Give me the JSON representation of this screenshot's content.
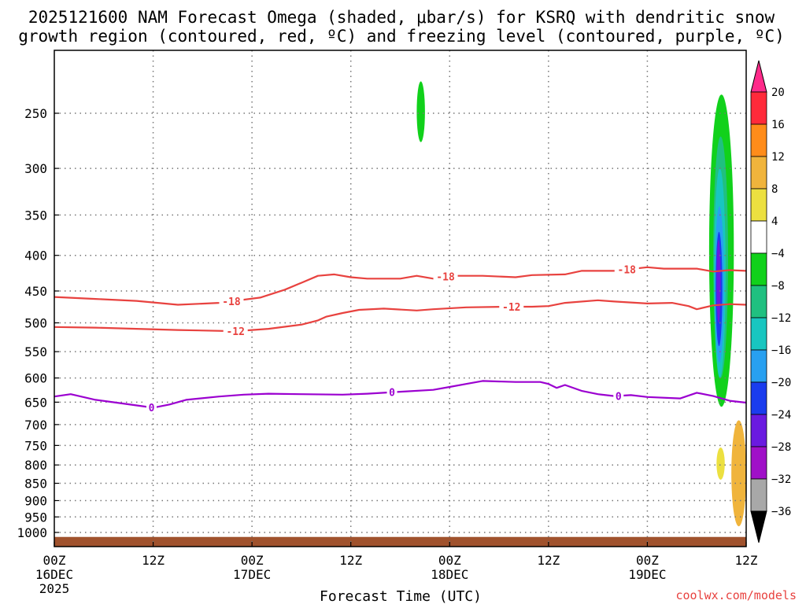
{
  "chart_data": {
    "type": "time-height",
    "title": "2025121600 NAM Forecast Omega (shaded, μbar/s) for KSRQ with dendritic snow",
    "title_line2": "growth region (contoured, red, ºC) and freezing level (contoured, purple, ºC)",
    "xlabel": "Forecast Time (UTC)",
    "credit": "coolwx.com/models",
    "y_axis": {
      "ticks": [
        {
          "p": 250,
          "label": "250"
        },
        {
          "p": 300,
          "label": "300"
        },
        {
          "p": 350,
          "label": "350"
        },
        {
          "p": 400,
          "label": "400"
        },
        {
          "p": 450,
          "label": "450"
        },
        {
          "p": 500,
          "label": "500"
        },
        {
          "p": 550,
          "label": "550"
        },
        {
          "p": 600,
          "label": "600"
        },
        {
          "p": 650,
          "label": "650"
        },
        {
          "p": 700,
          "label": "700"
        },
        {
          "p": 750,
          "label": "750"
        },
        {
          "p": 800,
          "label": "800"
        },
        {
          "p": 850,
          "label": "850"
        },
        {
          "p": 900,
          "label": "900"
        },
        {
          "p": 950,
          "label": "950"
        },
        {
          "p": 1000,
          "label": "1000"
        }
      ]
    },
    "x_axis": {
      "range_hours": [
        0,
        84
      ],
      "ticks": [
        {
          "h": 0,
          "label": "00Z",
          "label2": "16DEC",
          "label3": "2025"
        },
        {
          "h": 12,
          "label": "12Z",
          "label2": "",
          "label3": ""
        },
        {
          "h": 24,
          "label": "00Z",
          "label2": "17DEC",
          "label3": ""
        },
        {
          "h": 36,
          "label": "12Z",
          "label2": "",
          "label3": ""
        },
        {
          "h": 48,
          "label": "00Z",
          "label2": "18DEC",
          "label3": ""
        },
        {
          "h": 60,
          "label": "12Z",
          "label2": "",
          "label3": ""
        },
        {
          "h": 72,
          "label": "00Z",
          "label2": "19DEC",
          "label3": ""
        },
        {
          "h": 84,
          "label": "12Z",
          "label2": "",
          "label3": ""
        }
      ]
    },
    "colorbar": {
      "labels": [
        "20",
        "16",
        "12",
        "8",
        "4",
        "−4",
        "−8",
        "−12",
        "−16",
        "−20",
        "−24",
        "−28",
        "−32",
        "−36"
      ],
      "colors": [
        "#ff2a3a",
        "#ff8c1a",
        "#f0b43c",
        "#ece040",
        "#ffffff",
        "#11d11b",
        "#20c080",
        "#18c6c0",
        "#28a0f0",
        "#1a3cee",
        "#6a1ae0",
        "#a010c8",
        "#a8a8a8",
        "#000000"
      ],
      "top_arrow": "#ff2a8a",
      "bottom_arrow": "#000000"
    },
    "contours": [
      {
        "name": "dgz-minus18",
        "value": -18,
        "color": "#e8423f",
        "points": [
          [
            0,
            459
          ],
          [
            5,
            462
          ],
          [
            10,
            465
          ],
          [
            15,
            471
          ],
          [
            20,
            468
          ],
          [
            25,
            460
          ],
          [
            28,
            448
          ],
          [
            30,
            438
          ],
          [
            32,
            428
          ],
          [
            34,
            426
          ],
          [
            36,
            430
          ],
          [
            38,
            432
          ],
          [
            42,
            432
          ],
          [
            44,
            428
          ],
          [
            46,
            432
          ],
          [
            48,
            428
          ],
          [
            52,
            428
          ],
          [
            56,
            430
          ],
          [
            58,
            427
          ],
          [
            62,
            426
          ],
          [
            64,
            421
          ],
          [
            68,
            421
          ],
          [
            72,
            416
          ],
          [
            74,
            418
          ],
          [
            78,
            418
          ],
          [
            80,
            422
          ],
          [
            82,
            420
          ],
          [
            84,
            421
          ]
        ],
        "labels": [
          {
            "h": 21.5,
            "text": "-18"
          },
          {
            "h": 47.5,
            "text": "-18"
          },
          {
            "h": 69.5,
            "text": "-18"
          }
        ]
      },
      {
        "name": "dgz-minus12",
        "value": -12,
        "color": "#e8423f",
        "points": [
          [
            0,
            507
          ],
          [
            5,
            508
          ],
          [
            10,
            510
          ],
          [
            15,
            512
          ],
          [
            22,
            514
          ],
          [
            26,
            510
          ],
          [
            30,
            503
          ],
          [
            32,
            496
          ],
          [
            33,
            490
          ],
          [
            35,
            484
          ],
          [
            37,
            479
          ],
          [
            40,
            477
          ],
          [
            44,
            480
          ],
          [
            46,
            478
          ],
          [
            50,
            475
          ],
          [
            55,
            474
          ],
          [
            58,
            474
          ],
          [
            60,
            473
          ],
          [
            62,
            468
          ],
          [
            66,
            464
          ],
          [
            68,
            466
          ],
          [
            72,
            469
          ],
          [
            75,
            468
          ],
          [
            77,
            473
          ],
          [
            78,
            478
          ],
          [
            80,
            472
          ],
          [
            82,
            470
          ],
          [
            84,
            471
          ]
        ],
        "labels": [
          {
            "h": 22,
            "text": "-12"
          },
          {
            "h": 55.5,
            "text": "-12"
          }
        ]
      },
      {
        "name": "freezing-level",
        "value": 0,
        "color": "#9b00d0",
        "points": [
          [
            0,
            638
          ],
          [
            2,
            633
          ],
          [
            5,
            645
          ],
          [
            8,
            652
          ],
          [
            12,
            662
          ],
          [
            14,
            655
          ],
          [
            16,
            645
          ],
          [
            20,
            638
          ],
          [
            23,
            634
          ],
          [
            26,
            632
          ],
          [
            30,
            633
          ],
          [
            35,
            634
          ],
          [
            38,
            632
          ],
          [
            42,
            628
          ],
          [
            46,
            624
          ],
          [
            48,
            618
          ],
          [
            50,
            612
          ],
          [
            52,
            606
          ],
          [
            56,
            608
          ],
          [
            59,
            608
          ],
          [
            60,
            612
          ],
          [
            61,
            620
          ],
          [
            62,
            614
          ],
          [
            64,
            626
          ],
          [
            66,
            633
          ],
          [
            68,
            637
          ],
          [
            70,
            635
          ],
          [
            72,
            639
          ],
          [
            76,
            642
          ],
          [
            78,
            630
          ],
          [
            80,
            637
          ],
          [
            82,
            647
          ],
          [
            84,
            651
          ]
        ],
        "labels": [
          {
            "h": 11.8,
            "text": "0"
          },
          {
            "h": 41,
            "text": "0"
          },
          {
            "h": 68.5,
            "text": "0"
          }
        ]
      }
    ],
    "shaded": [
      {
        "name": "omega-green-upper-mid",
        "value_range": [
          -8,
          -4
        ],
        "color": "#11d11b",
        "hours": [
          44.0,
          45.0
        ],
        "p": [
          225,
          275
        ]
      },
      {
        "name": "omega-green-right",
        "value_range": [
          -8,
          -4
        ],
        "color": "#11d11b",
        "hours": [
          79.5,
          82.5
        ],
        "p": [
          235,
          660
        ]
      },
      {
        "name": "omega-teal-right",
        "value_range": [
          -12,
          -8
        ],
        "color": "#20c080",
        "hours": [
          80.0,
          81.8
        ],
        "p": [
          270,
          600
        ]
      },
      {
        "name": "omega-cyan-right",
        "value_range": [
          -16,
          -12
        ],
        "color": "#18c6c0",
        "hours": [
          80.1,
          81.5
        ],
        "p": [
          300,
          600
        ]
      },
      {
        "name": "omega-lightblue-right",
        "value_range": [
          -20,
          -16
        ],
        "color": "#28a0f0",
        "hours": [
          80.2,
          81.3
        ],
        "p": [
          340,
          570
        ]
      },
      {
        "name": "omega-blue-right",
        "value_range": [
          -24,
          -20
        ],
        "color": "#1a3cee",
        "hours": [
          80.3,
          81.1
        ],
        "p": [
          370,
          540
        ]
      },
      {
        "name": "omega-purple-right",
        "value_range": [
          -28,
          -24
        ],
        "color": "#6a1ae0",
        "hours": [
          80.4,
          80.9
        ],
        "p": [
          380,
          500
        ]
      },
      {
        "name": "omega-yellow-low",
        "value_range": [
          4,
          8
        ],
        "color": "#ece040",
        "hours": [
          80.4,
          81.4
        ],
        "p": [
          755,
          840
        ]
      },
      {
        "name": "omega-orange-right-edge",
        "value_range": [
          8,
          12
        ],
        "color": "#f0b43c",
        "hours": [
          82.2,
          84.0
        ],
        "p": [
          690,
          980
        ]
      }
    ],
    "surface_ground_p": [
      1015,
      1040
    ]
  }
}
